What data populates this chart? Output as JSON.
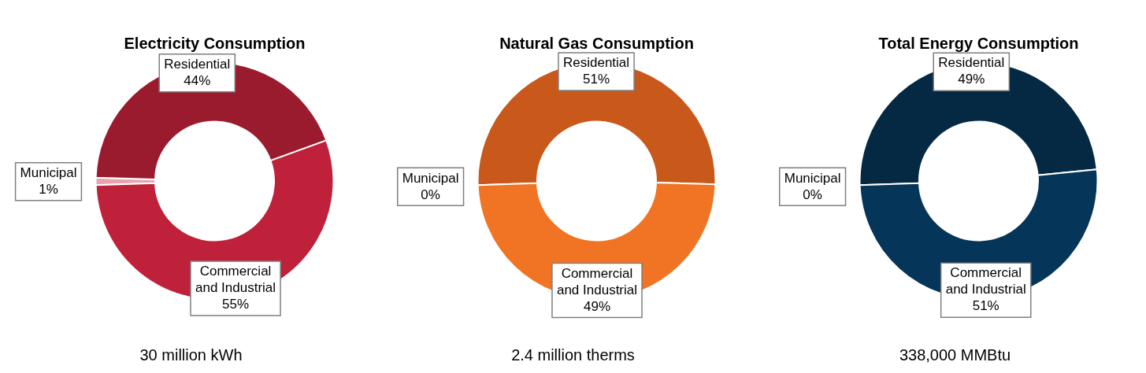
{
  "chart_data": [
    {
      "type": "donut",
      "title": "Electricity Consumption",
      "categories": [
        "Municipal",
        "Residential",
        "Commercial and Industrial"
      ],
      "values": [
        1,
        44,
        55
      ],
      "colors": [
        "#e9a3ad",
        "#9b1b2e",
        "#c0213a"
      ],
      "value_labels": [
        "1%",
        "44%",
        "55%"
      ],
      "legend": false,
      "annotations": [
        "30 million kWh"
      ]
    },
    {
      "type": "donut",
      "title": "Natural Gas Consumption",
      "categories": [
        "Municipal",
        "Residential",
        "Commercial and Industrial"
      ],
      "values": [
        0,
        51,
        49
      ],
      "colors": [
        "#f6c7a2",
        "#c8591b",
        "#f07424"
      ],
      "value_labels": [
        "0%",
        "51%",
        "49%"
      ],
      "legend": false,
      "annotations": [
        "2.4 million therms"
      ]
    },
    {
      "type": "donut",
      "title": "Total Energy Consumption",
      "categories": [
        "Municipal",
        "Residential",
        "Commercial and Industrial"
      ],
      "values": [
        0,
        49,
        51
      ],
      "colors": [
        "#a9b8c8",
        "#052943",
        "#06355a"
      ],
      "value_labels": [
        "0%",
        "49%",
        "51%"
      ],
      "legend": false,
      "annotations": [
        "338,000 MMBtu"
      ]
    }
  ]
}
